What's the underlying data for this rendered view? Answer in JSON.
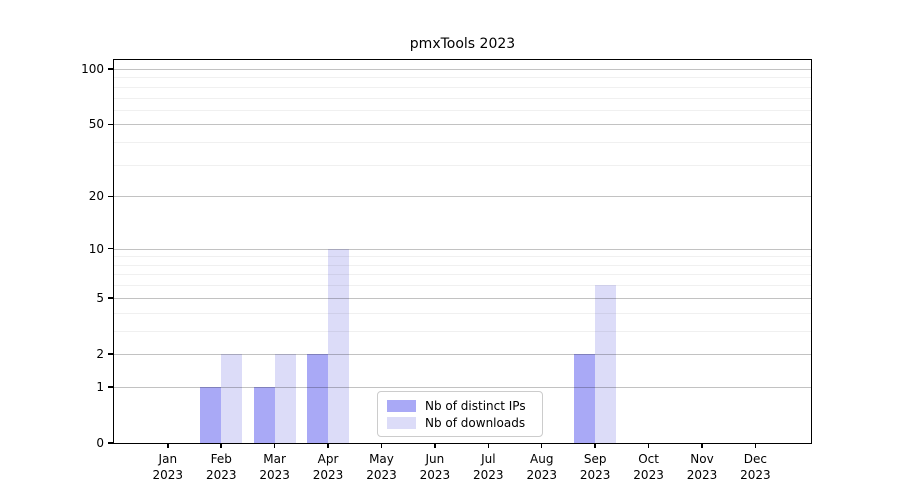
{
  "title": "pmxTools 2023",
  "colors": {
    "background": "#ffffff",
    "distinct_ips_bar": "#a9a9f6",
    "downloads_bar": "#dcdcf8",
    "grid_major": "#c3c3c3",
    "grid_minor": "#efefef",
    "axis": "#000000",
    "legend_border": "#cccccc"
  },
  "chart_data": {
    "type": "bar",
    "title": "pmxTools 2023",
    "xlabel": "",
    "ylabel": "",
    "scale": "log1p",
    "grid": "on",
    "legend_position": "lower center",
    "categories": [
      "Jan 2023",
      "Feb 2023",
      "Mar 2023",
      "Apr 2023",
      "May 2023",
      "Jun 2023",
      "Jul 2023",
      "Aug 2023",
      "Sep 2023",
      "Oct 2023",
      "Nov 2023",
      "Dec 2023"
    ],
    "x_tick_months": [
      "Jan",
      "Feb",
      "Mar",
      "Apr",
      "May",
      "Jun",
      "Jul",
      "Aug",
      "Sep",
      "Oct",
      "Nov",
      "Dec"
    ],
    "x_tick_year": "2023",
    "series": [
      {
        "name": "Nb of distinct IPs",
        "color": "#a9a9f6",
        "values": [
          0,
          1,
          1,
          2,
          0,
          0,
          0,
          0,
          2,
          0,
          0,
          0
        ]
      },
      {
        "name": "Nb of downloads",
        "color": "#dcdcf8",
        "values": [
          0,
          2,
          2,
          10,
          0,
          0,
          0,
          0,
          6,
          0,
          0,
          0
        ]
      }
    ],
    "y_major_ticks": [
      0,
      1,
      2,
      5,
      10,
      20,
      50,
      100
    ],
    "y_minor_ticks": [
      3,
      4,
      6,
      7,
      8,
      9,
      30,
      40,
      60,
      70,
      80,
      90
    ],
    "ylim": [
      0,
      114
    ]
  },
  "legend": {
    "items": [
      {
        "label": "Nb of distinct IPs"
      },
      {
        "label": "Nb of downloads"
      }
    ]
  }
}
